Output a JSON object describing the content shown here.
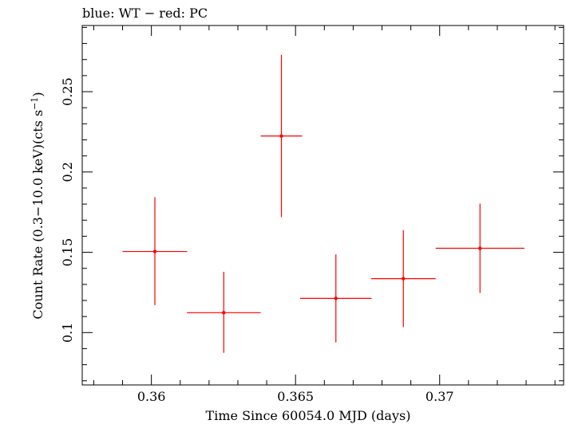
{
  "chart_data": {
    "type": "scatter",
    "title": "blue: WT − red: PC",
    "xlabel": "Time Since 60054.0 MJD (days)",
    "ylabel_main": "Count Rate (0.3−10.0 keV)(cts s",
    "ylabel_sup": "−1",
    "ylabel_close": ")",
    "xlim": [
      0.3576,
      0.3743
    ],
    "ylim": [
      0.0674,
      0.2912
    ],
    "x_ticks": [
      {
        "value": 0.36,
        "label": "0.36"
      },
      {
        "value": 0.365,
        "label": "0.365"
      },
      {
        "value": 0.37,
        "label": "0.37"
      }
    ],
    "y_ticks": [
      {
        "value": 0.1,
        "label": "0.1"
      },
      {
        "value": 0.15,
        "label": "0.15"
      },
      {
        "value": 0.2,
        "label": "0.2"
      },
      {
        "value": 0.25,
        "label": "0.25"
      }
    ],
    "grid": false,
    "series": [
      {
        "mode": "PC",
        "color": "#ff0000",
        "points": [
          {
            "x": 0.36012,
            "xerr_lo": 0.00112,
            "xerr_hi": 0.00112,
            "y": 0.1505,
            "yerr_lo": 0.0334,
            "yerr_hi": 0.0338
          },
          {
            "x": 0.36251,
            "xerr_lo": 0.00128,
            "xerr_hi": 0.00128,
            "y": 0.1124,
            "yerr_lo": 0.025,
            "yerr_hi": 0.0254
          },
          {
            "x": 0.36451,
            "xerr_lo": 0.00072,
            "xerr_hi": 0.00072,
            "y": 0.2224,
            "yerr_lo": 0.0505,
            "yerr_hi": 0.0505
          },
          {
            "x": 0.3664,
            "xerr_lo": 0.00124,
            "xerr_hi": 0.00124,
            "y": 0.1213,
            "yerr_lo": 0.0274,
            "yerr_hi": 0.0274
          },
          {
            "x": 0.36874,
            "xerr_lo": 0.00112,
            "xerr_hi": 0.00112,
            "y": 0.1336,
            "yerr_lo": 0.0302,
            "yerr_hi": 0.0302
          },
          {
            "x": 0.3714,
            "xerr_lo": 0.00154,
            "xerr_hi": 0.00154,
            "y": 0.1525,
            "yerr_lo": 0.0278,
            "yerr_hi": 0.0278
          }
        ]
      }
    ]
  }
}
